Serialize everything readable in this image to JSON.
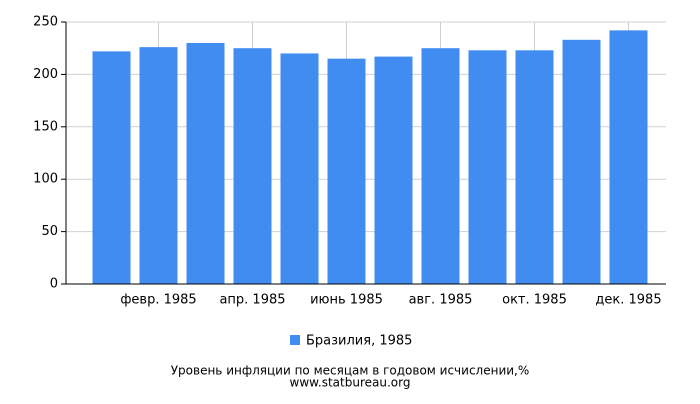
{
  "chart_data": {
    "type": "bar",
    "title": "Уровень инфляции по месяцам в годовом исчислении,%",
    "source": "www.statbureau.org",
    "categories": [
      null,
      "февр. 1985",
      null,
      "апр. 1985",
      null,
      "июнь 1985",
      null,
      "авг. 1985",
      null,
      "окт. 1985",
      null,
      "дек. 1985"
    ],
    "series": [
      {
        "name": "Бразилия, 1985",
        "color": "#418cf0",
        "values": [
          222,
          226,
          230,
          225,
          220,
          215,
          217,
          225,
          223,
          223,
          233,
          242
        ]
      }
    ],
    "ylim": [
      0,
      250
    ],
    "yticks": [
      0,
      50,
      100,
      150,
      200,
      250
    ],
    "grid": true,
    "legend": "bottom"
  }
}
